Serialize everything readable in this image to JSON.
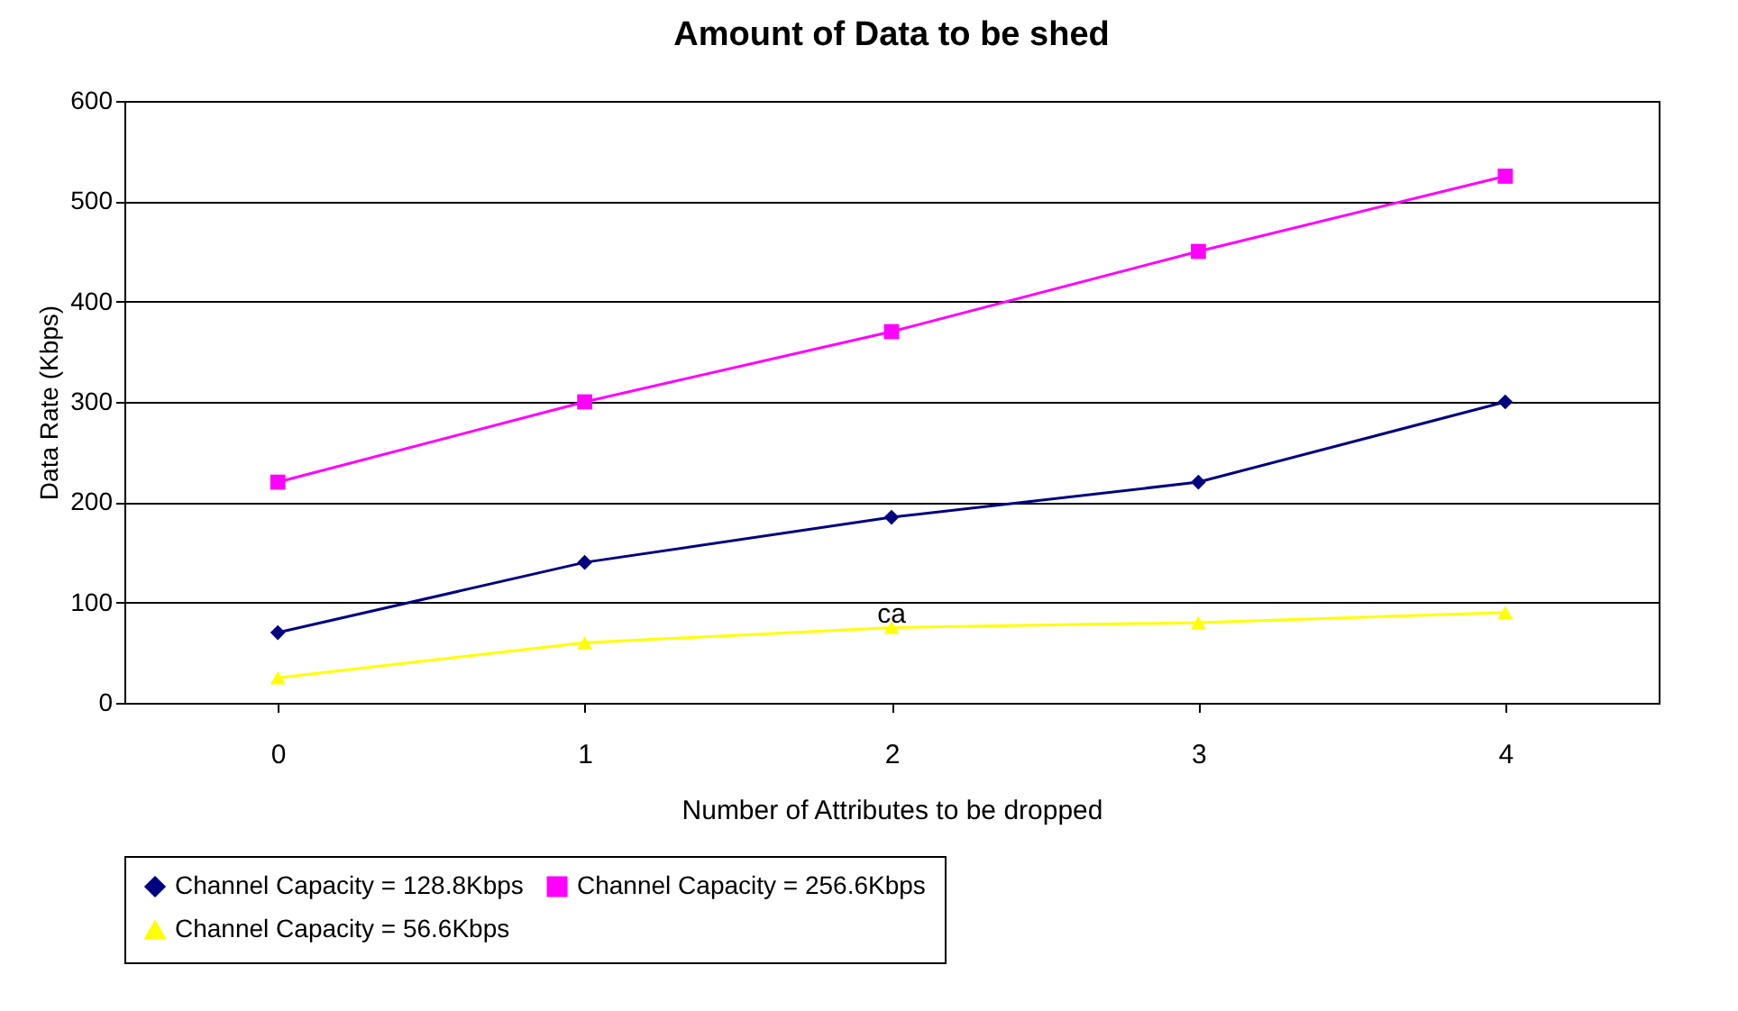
{
  "chart_data": {
    "type": "line",
    "title": "Amount of Data to be shed",
    "xlabel": "Number of Attributes to be dropped",
    "ylabel": "Data Rate (Kbps)",
    "categories": [
      "0",
      "1",
      "2",
      "3",
      "4"
    ],
    "series": [
      {
        "name": "Channel Capacity = 128.8Kbps",
        "color": "#000080",
        "marker": "diamond",
        "values": [
          70,
          140,
          185,
          220,
          300
        ]
      },
      {
        "name": "Channel Capacity = 256.6Kbps",
        "color": "#ff00ff",
        "marker": "square",
        "values": [
          220,
          300,
          370,
          450,
          525
        ]
      },
      {
        "name": "Channel Capacity = 56.6Kbps",
        "color": "#ffff00",
        "marker": "triangle",
        "values": [
          25,
          60,
          75,
          80,
          90
        ]
      }
    ],
    "annotations": [
      {
        "text": "ca",
        "x": "2",
        "y": 85
      }
    ],
    "ylim": [
      0,
      600
    ],
    "yticks": [
      0,
      100,
      200,
      300,
      400,
      500,
      600
    ],
    "grid": "y",
    "legend": "bottom",
    "line_style": "solid"
  }
}
